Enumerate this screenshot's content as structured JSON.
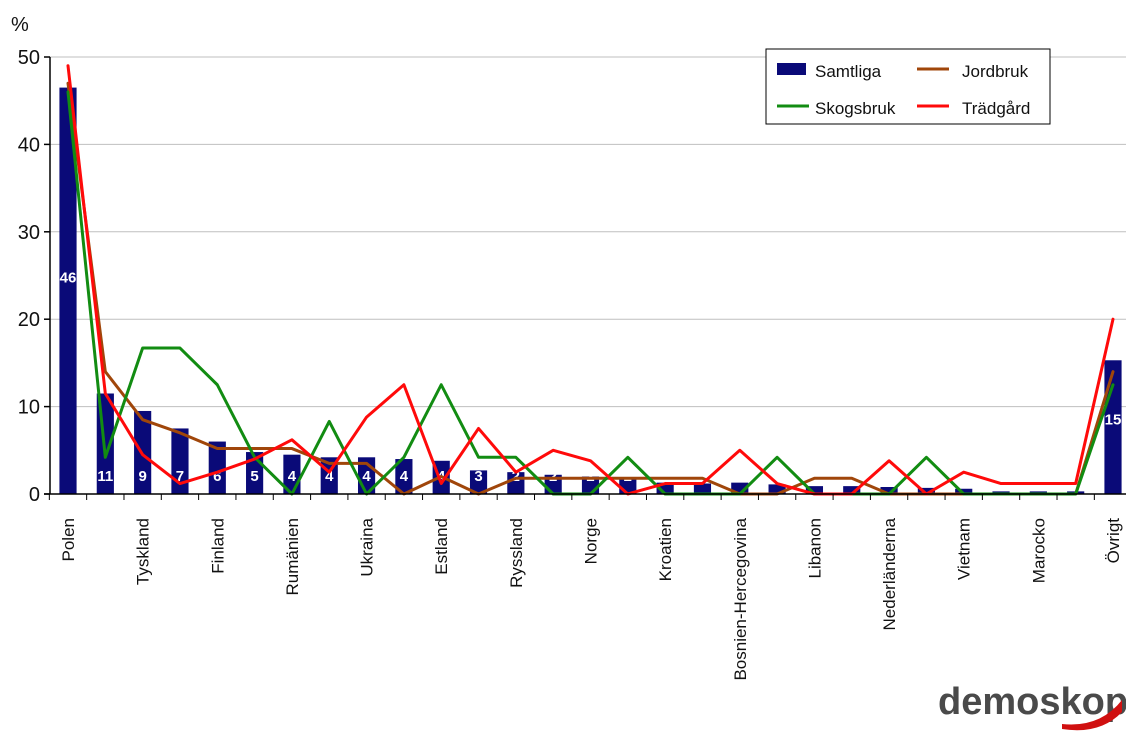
{
  "chart_data": {
    "type": "bar",
    "ylabel": "%",
    "ylim": [
      0,
      50
    ],
    "yticks": [
      0,
      10,
      20,
      30,
      40,
      50
    ],
    "categories": [
      "Polen",
      "",
      "Tyskland",
      "",
      "Finland",
      "",
      "Rumänien",
      "",
      "Ukraina",
      "",
      "Estland",
      "",
      "Ryssland",
      "",
      "Norge",
      "",
      "Kroatien",
      "",
      "Bosnien-Hercegovina",
      "",
      "Libanon",
      "",
      "Nederländerna",
      "",
      "Vietnam",
      "",
      "Marocko",
      "",
      "Övrigt"
    ],
    "series": [
      {
        "name": "Samtliga",
        "type": "bar",
        "color": "#0a0a78",
        "values": [
          46.5,
          11.5,
          9.5,
          7.5,
          6,
          4.8,
          4.5,
          4.2,
          4.2,
          4,
          3.8,
          2.7,
          2.5,
          2.2,
          2,
          1.8,
          1.3,
          1.2,
          1.3,
          1.1,
          0.9,
          0.9,
          0.8,
          0.7,
          0.6,
          0.3,
          0.3,
          0.3,
          15.3
        ],
        "labels": [
          "46",
          "11",
          "9",
          "7",
          "6",
          "5",
          "4",
          "4",
          "4",
          "4",
          "4",
          "3",
          "2",
          "2",
          "2",
          "2",
          "",
          "",
          "",
          "",
          "",
          "",
          "",
          "",
          "",
          "",
          "",
          "",
          "15"
        ]
      },
      {
        "name": "Jordbruk",
        "type": "line",
        "color": "#a0460a",
        "values": [
          47,
          14,
          8.5,
          7,
          5.2,
          5.2,
          5.2,
          3.5,
          3.5,
          0,
          2,
          0,
          1.8,
          1.8,
          1.8,
          1.8,
          1.8,
          1.8,
          0,
          0,
          1.8,
          1.8,
          0,
          0,
          0,
          0,
          0,
          0,
          14
        ]
      },
      {
        "name": "Skogsbruk",
        "type": "line",
        "color": "#128c12",
        "values": [
          46,
          4.2,
          16.7,
          16.7,
          12.5,
          4.2,
          0,
          8.3,
          0,
          4.2,
          12.5,
          4.2,
          4.2,
          0,
          0,
          4.2,
          0,
          0,
          0,
          4.2,
          0,
          0,
          0,
          4.2,
          0,
          0,
          0,
          0,
          12.5
        ]
      },
      {
        "name": "Trädgård",
        "type": "line",
        "color": "#ff0a0a",
        "values": [
          49,
          11.5,
          4.5,
          1.2,
          2.5,
          4,
          6.2,
          2.5,
          8.8,
          12.5,
          1.2,
          7.5,
          2.5,
          5,
          3.8,
          0,
          1.2,
          1.2,
          5,
          1.2,
          0,
          0,
          3.8,
          0,
          2.5,
          1.2,
          1.2,
          1.2,
          20
        ]
      }
    ],
    "grid": true,
    "legend_position": "top-right"
  },
  "logo": {
    "text": "demoskop"
  }
}
